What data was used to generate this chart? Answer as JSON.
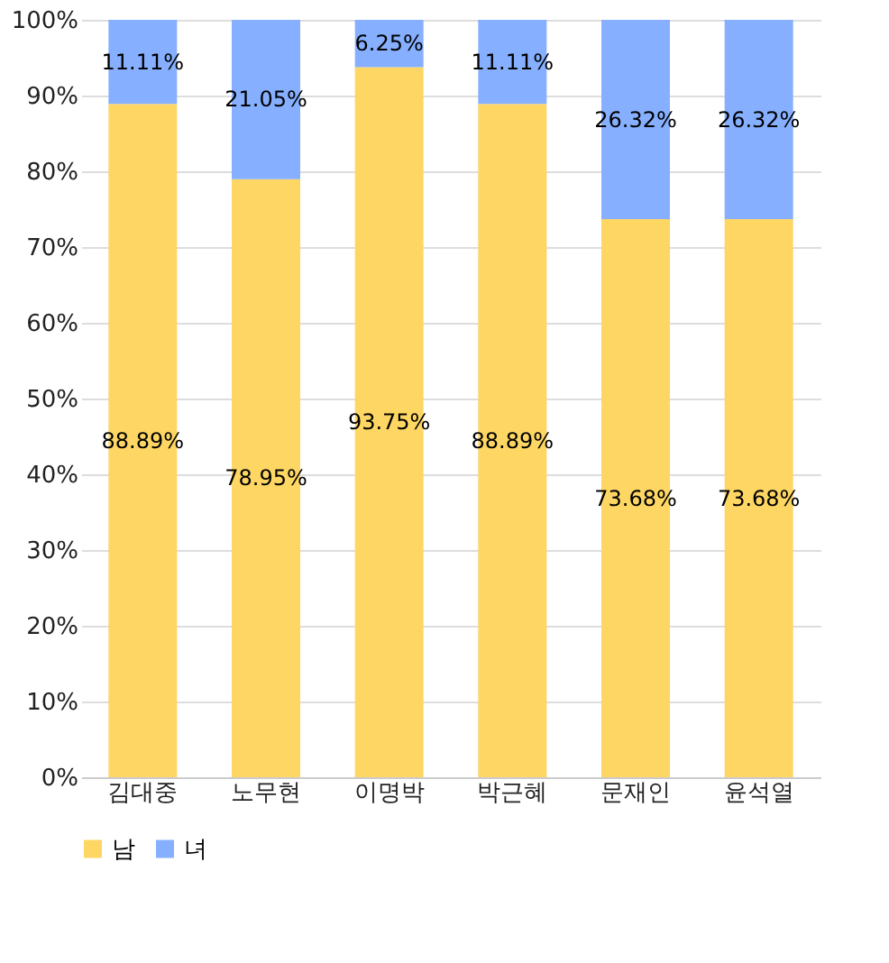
{
  "chart_data": {
    "type": "bar",
    "stacked": true,
    "categories": [
      "김대중",
      "노무현",
      "이명박",
      "박근혜",
      "문재인",
      "윤석열"
    ],
    "series": [
      {
        "name": "남",
        "color": "#fdd663",
        "values": [
          88.89,
          78.95,
          93.75,
          88.89,
          73.68,
          73.68
        ],
        "value_labels": [
          "88.89%",
          "78.95%",
          "93.75%",
          "88.89%",
          "73.68%",
          "73.68%"
        ]
      },
      {
        "name": "녀",
        "color": "#86b0ff",
        "values": [
          11.11,
          21.05,
          6.25,
          11.11,
          26.32,
          26.32
        ],
        "value_labels": [
          "11.11%",
          "21.05%",
          "6.25%",
          "11.11%",
          "26.32%",
          "26.32%"
        ]
      }
    ],
    "ylim": [
      0,
      100
    ],
    "yticks": [
      {
        "value": 0,
        "label": "0%"
      },
      {
        "value": 10,
        "label": "10%"
      },
      {
        "value": 20,
        "label": "20%"
      },
      {
        "value": 30,
        "label": "30%"
      },
      {
        "value": 40,
        "label": "40%"
      },
      {
        "value": 50,
        "label": "50%"
      },
      {
        "value": 60,
        "label": "60%"
      },
      {
        "value": 70,
        "label": "70%"
      },
      {
        "value": 80,
        "label": "80%"
      },
      {
        "value": 90,
        "label": "90%"
      },
      {
        "value": 100,
        "label": "100%"
      }
    ],
    "grid": "y",
    "legend": "bottom"
  }
}
